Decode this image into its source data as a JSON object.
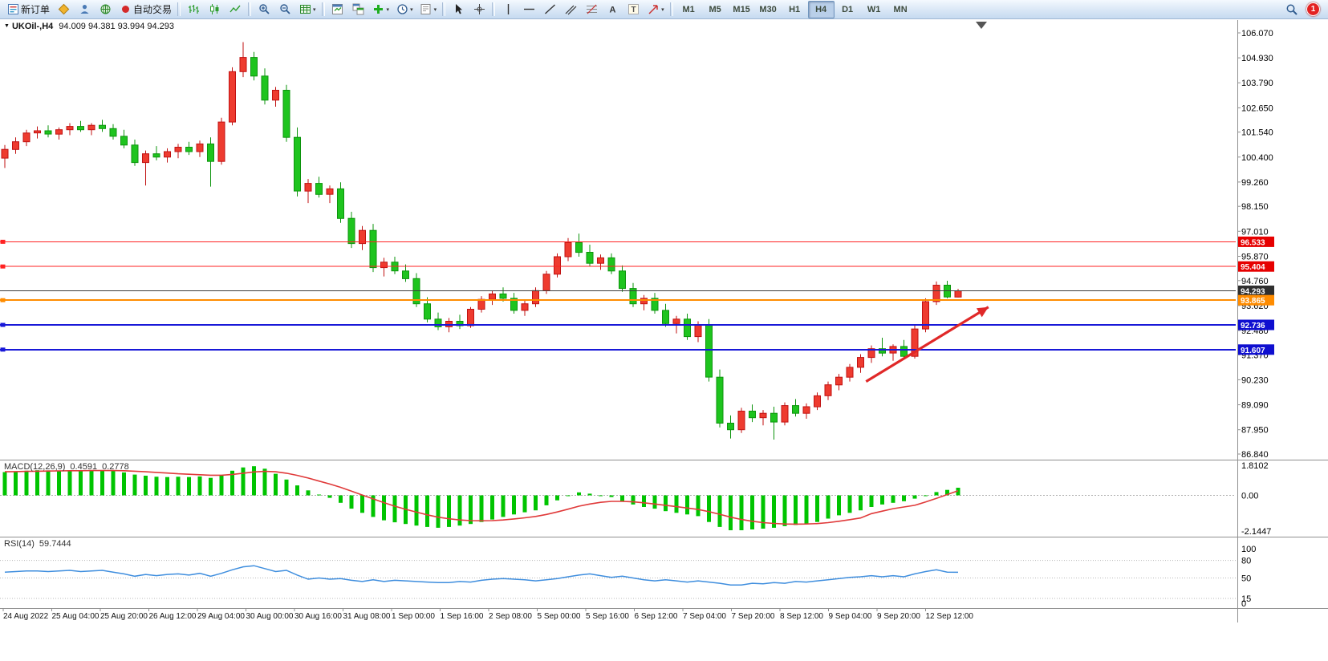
{
  "toolbar": {
    "buttons": [
      {
        "name": "new-order",
        "icon": "doc",
        "label": "新订单"
      },
      {
        "name": "market-watch",
        "icon": "diamond"
      },
      {
        "name": "data-window",
        "icon": "person"
      },
      {
        "name": "navigator",
        "icon": "globe"
      },
      {
        "name": "auto-trading",
        "icon": "dot-red",
        "label": "自动交易"
      },
      {
        "sep": true
      },
      {
        "name": "bar-chart-mode",
        "icon": "bars"
      },
      {
        "name": "candle-chart-mode",
        "icon": "candles"
      },
      {
        "name": "line-chart-mode",
        "icon": "line"
      },
      {
        "sep": true
      },
      {
        "name": "zoom-in",
        "icon": "zoom-in"
      },
      {
        "name": "zoom-out",
        "icon": "zoom-out"
      },
      {
        "name": "grid",
        "icon": "grid",
        "caret": true
      },
      {
        "sep": true
      },
      {
        "name": "tile-windows",
        "icon": "tile"
      },
      {
        "name": "arrange-windows",
        "icon": "tile2"
      },
      {
        "name": "indicators",
        "icon": "ind-plus",
        "caret": true
      },
      {
        "name": "periods",
        "icon": "clock",
        "caret": true
      },
      {
        "name": "templates",
        "icon": "template",
        "caret": true
      },
      {
        "sep": true
      },
      {
        "name": "cursor",
        "icon": "cursor"
      },
      {
        "name": "crosshair",
        "icon": "crosshair"
      },
      {
        "sep": true
      },
      {
        "name": "vertical-line",
        "icon": "vline"
      },
      {
        "name": "horizontal-line",
        "icon": "hline"
      },
      {
        "name": "trend-line",
        "icon": "tline"
      },
      {
        "name": "channel",
        "icon": "channel"
      },
      {
        "name": "fibonacci",
        "icon": "fibo"
      },
      {
        "name": "text",
        "icon": "textA"
      },
      {
        "name": "text-label",
        "icon": "textT"
      },
      {
        "name": "arrows-tool",
        "icon": "arrowobj",
        "caret": true
      },
      {
        "sep": true
      }
    ],
    "timeframes": [
      "M1",
      "M5",
      "M15",
      "M30",
      "H1",
      "H4",
      "D1",
      "W1",
      "MN"
    ],
    "active_timeframe": "H4",
    "notification_count": "1"
  },
  "chart": {
    "title": "UKOil-,H4",
    "ohlc": "94.009 94.381 93.994 94.293",
    "macd_name": "MACD(12,26,9)",
    "macd_value": "0.4591",
    "macd_signal": "0.2778",
    "rsi_name": "RSI(14)",
    "rsi_value": "59.7444"
  },
  "icons": {
    "symbol_caret": "▼",
    "dropdown_caret": "▾"
  },
  "colors": {
    "bull": "#ee3b2f",
    "bull_border": "#c01212",
    "bear": "#1ec41e",
    "bear_border": "#0d940d",
    "macd_hist": "#00c400",
    "macd_signal": "#e03a3a",
    "rsi_line": "#3f8ede",
    "arrow": "#e02828"
  },
  "chart_data": {
    "type": "candlestick",
    "symbol": "UKOil-",
    "timeframe": "H4",
    "ohlc_current": {
      "open": 94.009,
      "high": 94.381,
      "low": 93.994,
      "close": 94.293
    },
    "price_ticks": [
      "106.070",
      "104.930",
      "103.790",
      "102.650",
      "101.540",
      "100.400",
      "99.260",
      "98.150",
      "97.010",
      "95.870",
      "94.760",
      "93.620",
      "92.480",
      "91.370",
      "90.230",
      "89.090",
      "87.950",
      "86.840"
    ],
    "time_labels": [
      "24 Aug 2022",
      "25 Aug 04:00",
      "25 Aug 20:00",
      "26 Aug 12:00",
      "29 Aug 04:00",
      "30 Aug 00:00",
      "30 Aug 16:00",
      "31 Aug 08:00",
      "1 Sep 00:00",
      "1 Sep 16:00",
      "2 Sep 08:00",
      "5 Sep 00:00",
      "5 Sep 16:00",
      "6 Sep 12:00",
      "7 Sep 04:00",
      "7 Sep 20:00",
      "8 Sep 12:00",
      "9 Sep 04:00",
      "9 Sep 20:00",
      "12 Sep 12:00"
    ],
    "hlines": [
      {
        "price": 96.533,
        "label": "96.533",
        "color": "#ff2222",
        "width": 1,
        "tag": "#e60000"
      },
      {
        "price": 95.404,
        "label": "95.404",
        "color": "#ff2222",
        "width": 1,
        "tag": "#e60000"
      },
      {
        "price": 94.293,
        "label": "94.293",
        "color": "#3c3c3c",
        "width": 1,
        "tag": "#2f2f2f",
        "current": true
      },
      {
        "price": 93.865,
        "label": "93.865",
        "color": "#ff8c00",
        "width": 2,
        "tag": "#ff8c00"
      },
      {
        "price": 92.736,
        "label": "92.736",
        "color": "#1818d8",
        "width": 2,
        "tag": "#0f0fd0"
      },
      {
        "price": 91.607,
        "label": "91.607",
        "color": "#1818d8",
        "width": 2,
        "tag": "#0f0fd0"
      }
    ],
    "candles": [
      [
        100.35,
        100.95,
        99.9,
        100.75
      ],
      [
        100.75,
        101.3,
        100.55,
        101.1
      ],
      [
        101.1,
        101.65,
        100.9,
        101.5
      ],
      [
        101.5,
        101.8,
        101.25,
        101.6
      ],
      [
        101.6,
        101.85,
        101.3,
        101.45
      ],
      [
        101.45,
        101.75,
        101.2,
        101.65
      ],
      [
        101.65,
        101.95,
        101.4,
        101.8
      ],
      [
        101.8,
        102.05,
        101.55,
        101.65
      ],
      [
        101.65,
        101.95,
        101.4,
        101.85
      ],
      [
        101.85,
        102.1,
        101.55,
        101.7
      ],
      [
        101.7,
        101.9,
        101.2,
        101.35
      ],
      [
        101.35,
        101.65,
        100.8,
        100.95
      ],
      [
        100.95,
        101.2,
        100.0,
        100.15
      ],
      [
        100.15,
        100.7,
        99.1,
        100.55
      ],
      [
        100.55,
        100.9,
        100.25,
        100.4
      ],
      [
        100.4,
        100.8,
        100.15,
        100.65
      ],
      [
        100.65,
        101.0,
        100.35,
        100.85
      ],
      [
        100.85,
        101.1,
        100.5,
        100.65
      ],
      [
        100.65,
        101.15,
        100.4,
        101.0
      ],
      [
        101.0,
        101.3,
        99.05,
        100.2
      ],
      [
        100.2,
        102.2,
        100.05,
        102.0
      ],
      [
        102.0,
        104.5,
        101.85,
        104.3
      ],
      [
        104.3,
        105.65,
        104.05,
        104.95
      ],
      [
        104.95,
        105.2,
        103.9,
        104.1
      ],
      [
        104.1,
        104.45,
        102.8,
        103.0
      ],
      [
        103.0,
        103.6,
        102.7,
        103.45
      ],
      [
        103.45,
        103.7,
        101.1,
        101.3
      ],
      [
        101.3,
        101.75,
        98.6,
        98.85
      ],
      [
        98.85,
        99.4,
        98.3,
        99.2
      ],
      [
        99.2,
        99.5,
        98.55,
        98.7
      ],
      [
        98.7,
        99.1,
        98.3,
        98.95
      ],
      [
        98.95,
        99.25,
        97.4,
        97.6
      ],
      [
        97.6,
        97.9,
        96.25,
        96.45
      ],
      [
        96.45,
        97.25,
        96.15,
        97.05
      ],
      [
        97.05,
        97.35,
        95.15,
        95.35
      ],
      [
        95.35,
        95.8,
        94.95,
        95.6
      ],
      [
        95.6,
        95.85,
        95.05,
        95.2
      ],
      [
        95.2,
        95.5,
        94.7,
        94.85
      ],
      [
        94.85,
        95.1,
        93.55,
        93.7
      ],
      [
        93.7,
        94.0,
        92.85,
        93.0
      ],
      [
        93.0,
        93.3,
        92.5,
        92.65
      ],
      [
        92.65,
        93.05,
        92.4,
        92.9
      ],
      [
        92.9,
        93.2,
        92.55,
        92.7
      ],
      [
        92.7,
        93.55,
        92.6,
        93.45
      ],
      [
        93.45,
        94.05,
        93.3,
        93.9
      ],
      [
        93.9,
        94.3,
        93.65,
        94.15
      ],
      [
        94.15,
        94.45,
        93.8,
        93.95
      ],
      [
        93.95,
        94.2,
        93.25,
        93.4
      ],
      [
        93.4,
        93.85,
        93.15,
        93.7
      ],
      [
        93.7,
        94.45,
        93.55,
        94.3
      ],
      [
        94.3,
        95.2,
        94.15,
        95.05
      ],
      [
        95.05,
        96.0,
        94.9,
        95.85
      ],
      [
        95.85,
        96.7,
        95.65,
        96.5
      ],
      [
        96.5,
        96.9,
        95.85,
        96.05
      ],
      [
        96.05,
        96.4,
        95.4,
        95.55
      ],
      [
        95.55,
        95.95,
        95.25,
        95.8
      ],
      [
        95.8,
        96.0,
        95.05,
        95.2
      ],
      [
        95.2,
        95.45,
        94.25,
        94.4
      ],
      [
        94.4,
        94.65,
        93.55,
        93.7
      ],
      [
        93.7,
        94.1,
        93.4,
        93.95
      ],
      [
        93.95,
        94.2,
        93.25,
        93.4
      ],
      [
        93.4,
        93.7,
        92.65,
        92.8
      ],
      [
        92.8,
        93.15,
        92.35,
        93.0
      ],
      [
        93.0,
        93.25,
        92.05,
        92.2
      ],
      [
        92.2,
        92.9,
        91.95,
        92.75
      ],
      [
        92.75,
        93.0,
        90.15,
        90.35
      ],
      [
        90.35,
        90.7,
        88.05,
        88.25
      ],
      [
        88.25,
        88.6,
        87.55,
        87.95
      ],
      [
        87.95,
        88.95,
        87.8,
        88.8
      ],
      [
        88.8,
        89.1,
        88.3,
        88.5
      ],
      [
        88.5,
        88.85,
        88.15,
        88.7
      ],
      [
        88.7,
        89.0,
        87.5,
        88.3
      ],
      [
        88.3,
        89.2,
        88.15,
        89.05
      ],
      [
        89.05,
        89.35,
        88.55,
        88.7
      ],
      [
        88.7,
        89.15,
        88.45,
        89.0
      ],
      [
        89.0,
        89.65,
        88.85,
        89.5
      ],
      [
        89.5,
        90.15,
        89.3,
        90.0
      ],
      [
        90.0,
        90.5,
        89.75,
        90.35
      ],
      [
        90.35,
        90.95,
        90.15,
        90.8
      ],
      [
        90.8,
        91.4,
        90.55,
        91.25
      ],
      [
        91.25,
        91.8,
        91.0,
        91.65
      ],
      [
        91.65,
        92.15,
        91.3,
        91.45
      ],
      [
        91.45,
        91.85,
        91.1,
        91.75
      ],
      [
        91.75,
        92.05,
        91.15,
        91.3
      ],
      [
        91.3,
        92.7,
        91.2,
        92.55
      ],
      [
        92.55,
        93.95,
        92.4,
        93.8
      ],
      [
        93.8,
        94.72,
        93.65,
        94.55
      ],
      [
        94.55,
        94.75,
        93.95,
        94.01
      ],
      [
        94.009,
        94.381,
        93.994,
        94.293
      ]
    ],
    "macd": {
      "name": "MACD(12,26,9)",
      "ticks": [
        "1.8102",
        "0.00",
        "-2.1447"
      ],
      "hist": [
        1.4,
        1.44,
        1.48,
        1.51,
        1.5,
        1.49,
        1.51,
        1.52,
        1.51,
        1.52,
        1.47,
        1.38,
        1.25,
        1.18,
        1.12,
        1.1,
        1.12,
        1.1,
        1.14,
        1.05,
        1.22,
        1.48,
        1.68,
        1.75,
        1.6,
        1.3,
        0.95,
        0.6,
        0.3,
        0.05,
        -0.15,
        -0.45,
        -0.8,
        -1.05,
        -1.3,
        -1.5,
        -1.62,
        -1.72,
        -1.82,
        -1.9,
        -1.95,
        -1.9,
        -1.82,
        -1.72,
        -1.6,
        -1.45,
        -1.3,
        -1.15,
        -1.02,
        -0.9,
        -0.6,
        -0.3,
        -0.05,
        0.18,
        0.1,
        0.0,
        -0.1,
        -0.35,
        -0.55,
        -0.7,
        -0.8,
        -0.95,
        -1.05,
        -1.15,
        -1.25,
        -1.6,
        -1.9,
        -2.1,
        -2.1,
        -2.05,
        -2.0,
        -1.95,
        -1.85,
        -1.78,
        -1.7,
        -1.6,
        -1.4,
        -1.2,
        -1.05,
        -0.9,
        -0.7,
        -0.55,
        -0.45,
        -0.35,
        -0.2,
        0.0,
        0.2,
        0.33,
        0.4591
      ],
      "signal": [
        1.42,
        1.43,
        1.44,
        1.45,
        1.46,
        1.47,
        1.48,
        1.48,
        1.49,
        1.49,
        1.49,
        1.48,
        1.45,
        1.42,
        1.38,
        1.34,
        1.3,
        1.27,
        1.24,
        1.21,
        1.21,
        1.26,
        1.33,
        1.41,
        1.44,
        1.42,
        1.33,
        1.2,
        1.04,
        0.86,
        0.68,
        0.48,
        0.25,
        0.02,
        -0.21,
        -0.44,
        -0.65,
        -0.84,
        -1.01,
        -1.17,
        -1.31,
        -1.41,
        -1.48,
        -1.52,
        -1.53,
        -1.52,
        -1.48,
        -1.42,
        -1.35,
        -1.27,
        -1.15,
        -1.0,
        -0.83,
        -0.65,
        -0.52,
        -0.42,
        -0.36,
        -0.36,
        -0.39,
        -0.45,
        -0.52,
        -0.6,
        -0.68,
        -0.76,
        -0.85,
        -0.98,
        -1.14,
        -1.31,
        -1.45,
        -1.56,
        -1.64,
        -1.69,
        -1.72,
        -1.73,
        -1.72,
        -1.7,
        -1.64,
        -1.56,
        -1.46,
        -1.36,
        -1.1,
        -0.95,
        -0.8,
        -0.7,
        -0.6,
        -0.4,
        -0.18,
        0.05,
        0.2778
      ]
    },
    "rsi": {
      "name": "RSI(14)",
      "period": 14,
      "current": 59.7444,
      "levels": [
        "100",
        "80",
        "50",
        "15",
        "0"
      ],
      "level_lines": [
        80,
        50,
        15
      ],
      "values": [
        60,
        61,
        62,
        62,
        61,
        62,
        63,
        61,
        62,
        63,
        60,
        57,
        53,
        56,
        54,
        56,
        57,
        55,
        58,
        53,
        58,
        64,
        69,
        71,
        66,
        61,
        63,
        55,
        48,
        50,
        48,
        49,
        46,
        44,
        47,
        44,
        46,
        45,
        44,
        43,
        42,
        42,
        44,
        43,
        46,
        48,
        49,
        48,
        47,
        45,
        47,
        49,
        52,
        55,
        57,
        54,
        51,
        53,
        50,
        47,
        45,
        47,
        45,
        43,
        45,
        43,
        41,
        38,
        38,
        41,
        40,
        42,
        41,
        44,
        43,
        45,
        47,
        49,
        51,
        52,
        54,
        52,
        54,
        52,
        57,
        61,
        64,
        60,
        59.74
      ]
    },
    "arrow": {
      "from_index": 79.5,
      "from_price": 90.15,
      "to_index": 90.8,
      "to_price": 93.55
    }
  }
}
